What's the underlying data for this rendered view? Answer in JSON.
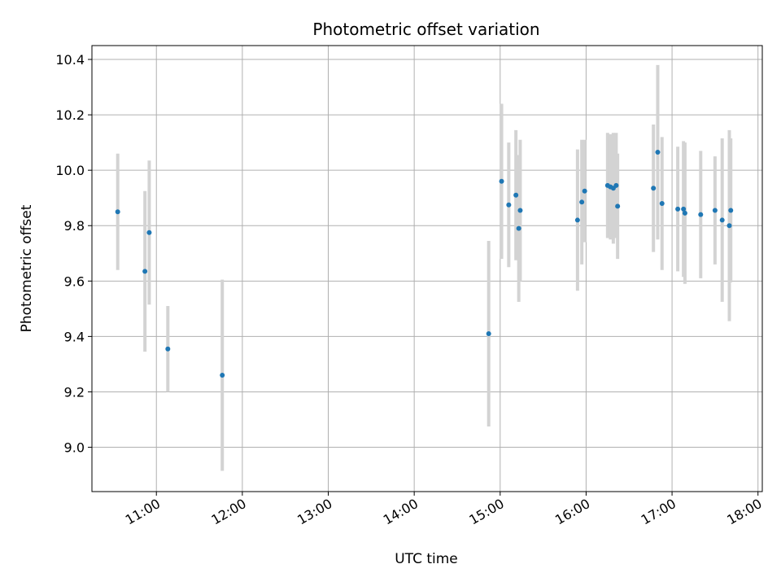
{
  "chart_data": {
    "type": "scatter",
    "title": "Photometric offset variation",
    "xlabel": "UTC time",
    "ylabel": "Photometric offset",
    "x_tick_labels": [
      "11:00",
      "12:00",
      "13:00",
      "14:00",
      "15:00",
      "16:00",
      "17:00",
      "18:00"
    ],
    "y_tick_labels": [
      "9.0",
      "9.2",
      "9.4",
      "9.6",
      "9.8",
      "10.0",
      "10.2",
      "10.4"
    ],
    "y_ticks": [
      9.0,
      9.2,
      9.4,
      9.6,
      9.8,
      10.0,
      10.2,
      10.4
    ],
    "xlim": [
      "10:15",
      "18:03"
    ],
    "ylim": [
      8.84,
      10.45
    ],
    "grid": true,
    "point_color": "#1f77b4",
    "errorbar_color": "#d3d3d3",
    "points": [
      {
        "x": "10:33",
        "y": 9.85,
        "err": 0.21
      },
      {
        "x": "10:52",
        "y": 9.635,
        "err": 0.29
      },
      {
        "x": "10:55",
        "y": 9.775,
        "err": 0.26
      },
      {
        "x": "11:08",
        "y": 9.355,
        "err": 0.155
      },
      {
        "x": "11:46",
        "y": 9.26,
        "err": 0.345
      },
      {
        "x": "14:52",
        "y": 9.41,
        "err": 0.335
      },
      {
        "x": "15:01",
        "y": 9.96,
        "err": 0.28
      },
      {
        "x": "15:06",
        "y": 9.875,
        "err": 0.225
      },
      {
        "x": "15:11",
        "y": 9.91,
        "err": 0.235
      },
      {
        "x": "15:13",
        "y": 9.79,
        "err": 0.265
      },
      {
        "x": "15:14",
        "y": 9.855,
        "err": 0.255
      },
      {
        "x": "15:54",
        "y": 9.82,
        "err": 0.255
      },
      {
        "x": "15:57",
        "y": 9.885,
        "err": 0.225
      },
      {
        "x": "15:59",
        "y": 9.925,
        "err": 0.185
      },
      {
        "x": "16:15",
        "y": 9.945,
        "err": 0.19
      },
      {
        "x": "16:17",
        "y": 9.94,
        "err": 0.19
      },
      {
        "x": "16:19",
        "y": 9.935,
        "err": 0.2
      },
      {
        "x": "16:21",
        "y": 9.945,
        "err": 0.19
      },
      {
        "x": "16:22",
        "y": 9.87,
        "err": 0.19
      },
      {
        "x": "16:47",
        "y": 9.935,
        "err": 0.23
      },
      {
        "x": "16:50",
        "y": 10.065,
        "err": 0.315
      },
      {
        "x": "16:53",
        "y": 9.88,
        "err": 0.24
      },
      {
        "x": "17:04",
        "y": 9.86,
        "err": 0.225
      },
      {
        "x": "17:08",
        "y": 9.86,
        "err": 0.245
      },
      {
        "x": "17:09",
        "y": 9.845,
        "err": 0.255
      },
      {
        "x": "17:20",
        "y": 9.84,
        "err": 0.23
      },
      {
        "x": "17:30",
        "y": 9.855,
        "err": 0.195
      },
      {
        "x": "17:35",
        "y": 9.82,
        "err": 0.295
      },
      {
        "x": "17:40",
        "y": 9.8,
        "err": 0.345
      },
      {
        "x": "17:41",
        "y": 9.855,
        "err": 0.26
      }
    ]
  }
}
